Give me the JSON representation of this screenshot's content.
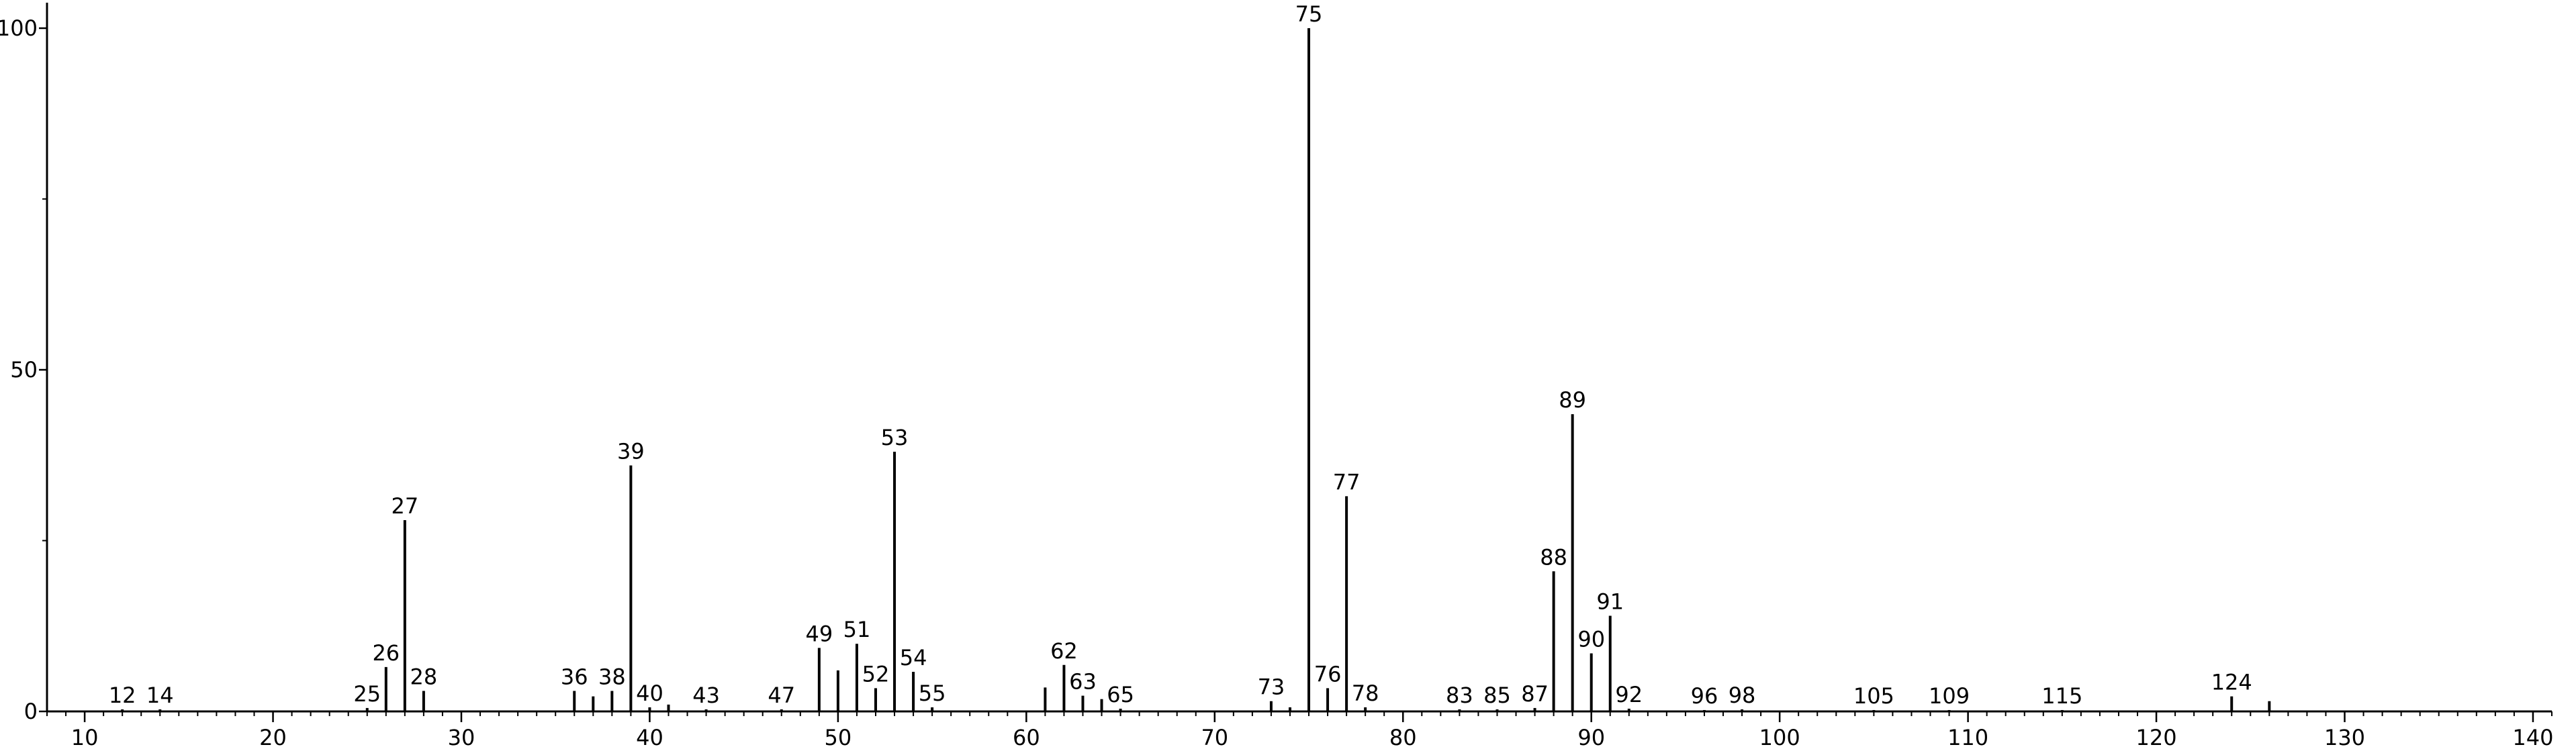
{
  "chart_data": {
    "type": "bar",
    "title": "",
    "xlabel": "",
    "ylabel": "",
    "xlim": [
      8,
      141
    ],
    "ylim": [
      0,
      100
    ],
    "x_ticks": [
      10,
      20,
      30,
      40,
      50,
      60,
      70,
      80,
      90,
      100,
      110,
      120,
      130,
      140
    ],
    "y_ticks": [
      0,
      50,
      100
    ],
    "grid": false,
    "legend": "none",
    "colors": {
      "peak": "#000000",
      "axis": "#000000"
    },
    "peaks": [
      {
        "x": 12,
        "y": 0.3,
        "label": "12"
      },
      {
        "x": 14,
        "y": 0.3,
        "label": "14"
      },
      {
        "x": 25,
        "y": 0.5,
        "label": "25"
      },
      {
        "x": 26,
        "y": 6.5,
        "label": "26"
      },
      {
        "x": 27,
        "y": 28.0,
        "label": "27"
      },
      {
        "x": 28,
        "y": 3.0,
        "label": "28"
      },
      {
        "x": 36,
        "y": 3.0,
        "label": "36"
      },
      {
        "x": 37,
        "y": 2.2,
        "label": ""
      },
      {
        "x": 38,
        "y": 3.0,
        "label": "38"
      },
      {
        "x": 39,
        "y": 36.0,
        "label": "39"
      },
      {
        "x": 40,
        "y": 0.6,
        "label": "40"
      },
      {
        "x": 41,
        "y": 1.0,
        "label": ""
      },
      {
        "x": 43,
        "y": 0.3,
        "label": "43"
      },
      {
        "x": 47,
        "y": 0.3,
        "label": "47"
      },
      {
        "x": 49,
        "y": 9.3,
        "label": "49"
      },
      {
        "x": 50,
        "y": 6.0,
        "label": ""
      },
      {
        "x": 51,
        "y": 9.9,
        "label": "51"
      },
      {
        "x": 52,
        "y": 3.4,
        "label": "52"
      },
      {
        "x": 53,
        "y": 38.0,
        "label": "53"
      },
      {
        "x": 54,
        "y": 5.8,
        "label": "54"
      },
      {
        "x": 55,
        "y": 0.6,
        "label": "55"
      },
      {
        "x": 61,
        "y": 3.5,
        "label": ""
      },
      {
        "x": 62,
        "y": 6.8,
        "label": "62"
      },
      {
        "x": 63,
        "y": 2.3,
        "label": "63"
      },
      {
        "x": 64,
        "y": 1.8,
        "label": ""
      },
      {
        "x": 65,
        "y": 0.4,
        "label": "65"
      },
      {
        "x": 73,
        "y": 1.5,
        "label": "73"
      },
      {
        "x": 74,
        "y": 0.6,
        "label": ""
      },
      {
        "x": 75,
        "y": 100.0,
        "label": "75"
      },
      {
        "x": 76,
        "y": 3.4,
        "label": "76"
      },
      {
        "x": 77,
        "y": 31.5,
        "label": "77"
      },
      {
        "x": 78,
        "y": 0.6,
        "label": "78"
      },
      {
        "x": 83,
        "y": 0.3,
        "label": "83"
      },
      {
        "x": 85,
        "y": 0.3,
        "label": "85"
      },
      {
        "x": 87,
        "y": 0.5,
        "label": "87"
      },
      {
        "x": 88,
        "y": 20.5,
        "label": "88"
      },
      {
        "x": 89,
        "y": 43.5,
        "label": "89"
      },
      {
        "x": 90,
        "y": 8.5,
        "label": "90"
      },
      {
        "x": 91,
        "y": 14.0,
        "label": "91"
      },
      {
        "x": 92,
        "y": 0.4,
        "label": "92"
      },
      {
        "x": 96,
        "y": 0.2,
        "label": "96"
      },
      {
        "x": 98,
        "y": 0.3,
        "label": "98"
      },
      {
        "x": 105,
        "y": 0.2,
        "label": "105"
      },
      {
        "x": 109,
        "y": 0.2,
        "label": "109"
      },
      {
        "x": 115,
        "y": 0.2,
        "label": "115"
      },
      {
        "x": 124,
        "y": 2.2,
        "label": "124"
      },
      {
        "x": 126,
        "y": 1.5,
        "label": ""
      }
    ]
  }
}
